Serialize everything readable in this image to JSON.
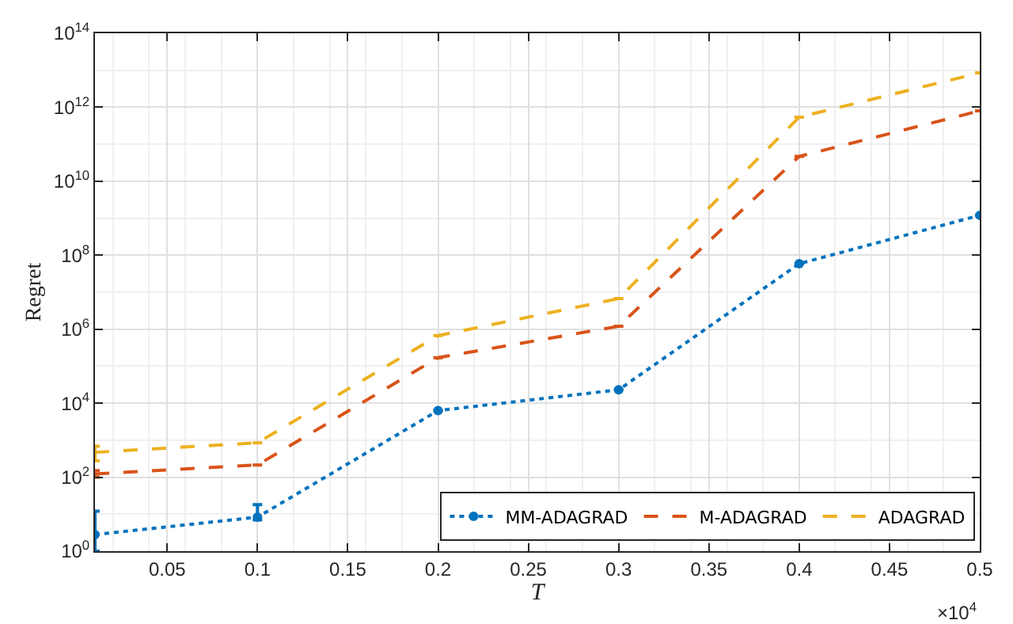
{
  "chart_data": {
    "type": "line",
    "xlabel": "T",
    "ylabel": "Regret",
    "x": [
      0.01,
      0.1,
      0.2,
      0.3,
      0.4,
      0.5
    ],
    "series": [
      {
        "name": "MM-ADAGRAD",
        "color": "#0072bd",
        "line_style": "dotted",
        "marker": "circle",
        "values": [
          2.8,
          8.3,
          6300,
          23000,
          59000000,
          1200000000
        ],
        "errors": [
          [
            1,
            12
          ],
          [
            7,
            18
          ],
          null,
          null,
          null,
          null
        ]
      },
      {
        "name": "M-ADAGRAD",
        "color": "#d95319",
        "line_style": "dashed",
        "marker": "none",
        "values": [
          123,
          214,
          170000,
          1200000,
          47000000000,
          800000000000
        ],
        "errors": [
          [
            100,
            150
          ],
          null,
          null,
          null,
          null,
          null
        ]
      },
      {
        "name": "ADAGRAD",
        "color": "#edb120",
        "line_style": "dashed",
        "marker": "none",
        "values": [
          470,
          850,
          670000,
          6700000,
          540000000000,
          8500000000000
        ],
        "errors": [
          [
            280,
            690
          ],
          null,
          null,
          null,
          null,
          null
        ]
      }
    ],
    "log": "y",
    "grid": true,
    "legend": "bottom right",
    "xlim": [
      0.01,
      0.5
    ],
    "xticks": [
      0.05,
      0.1,
      0.15,
      0.2,
      0.25,
      0.3,
      0.35,
      0.4,
      0.45,
      0.5
    ],
    "ylim": [
      1,
      100000000000000
    ],
    "yticks": [
      {
        "value": 1,
        "label": "10$^{0}$"
      },
      {
        "value": 100,
        "label": "10$^{2}$"
      },
      {
        "value": 10000,
        "label": "10$^{4}$"
      },
      {
        "value": 1000000,
        "label": "10$^{6}$"
      },
      {
        "value": 100000000,
        "label": "10$^{8}$"
      },
      {
        "value": 10000000000,
        "label": "10$^{10}$"
      },
      {
        "value": 1000000000000,
        "label": "10$^{12}$"
      },
      {
        "value": 100000000000000,
        "label": "10$^{14}$"
      }
    ],
    "annotations": [
      "×10$^{4}$"
    ]
  }
}
